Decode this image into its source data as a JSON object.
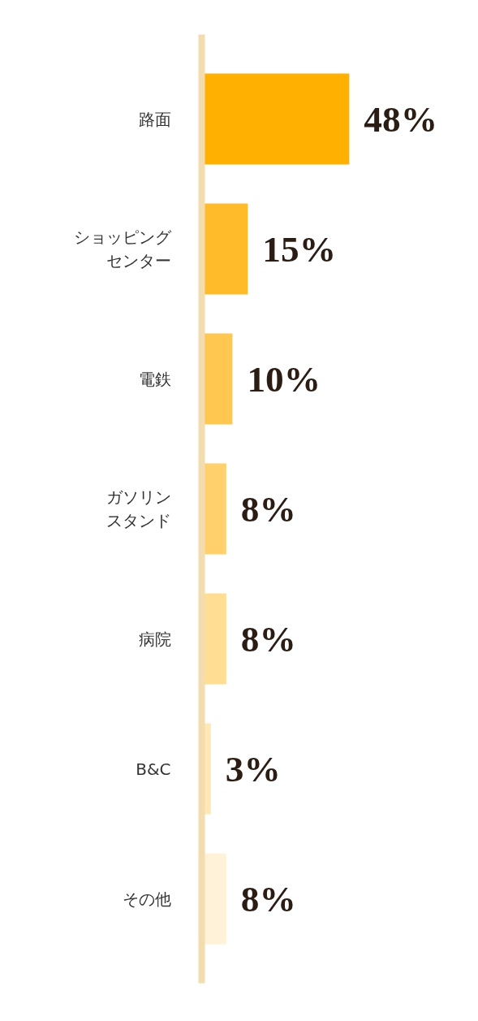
{
  "chart_data": {
    "type": "bar",
    "orientation": "horizontal",
    "categories": [
      "路面",
      "ショッピングセンター",
      "電鉄",
      "ガソリンスタンド",
      "病院",
      "B&C",
      "その他"
    ],
    "values": [
      48,
      15,
      10,
      8,
      8,
      3,
      8
    ],
    "value_labels": [
      "48%",
      "15%",
      "10%",
      "8%",
      "8%",
      "3%",
      "8%"
    ],
    "colors": [
      "#ffb000",
      "#ffbb2a",
      "#ffc74f",
      "#ffd06c",
      "#ffdd92",
      "#ffe8b5",
      "#fff2d8"
    ],
    "tick_labels": "y",
    "grid": false
  }
}
